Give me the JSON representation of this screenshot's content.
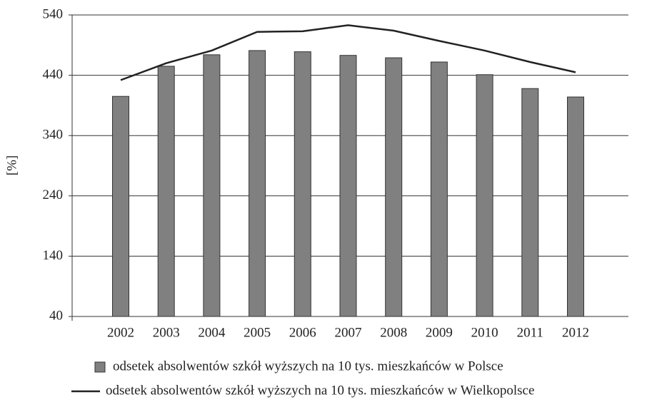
{
  "chart_data": {
    "type": "bar",
    "y_label": "[%]",
    "categories": [
      "2002",
      "2003",
      "2004",
      "2005",
      "2006",
      "2007",
      "2008",
      "2009",
      "2010",
      "2011",
      "2012"
    ],
    "series": [
      {
        "name": "odsetek absolwentów szkół wyższych na 10 tys. mieszkańców w Polsce",
        "type": "bar",
        "color": "#808080",
        "values": [
          405,
          455,
          474,
          481,
          479,
          473,
          469,
          462,
          441,
          418,
          404
        ]
      },
      {
        "name": "odsetek absolwentów szkół wyższych na 10 tys. mieszkańców w Wielkopolsce",
        "type": "line",
        "color": "#222222",
        "values": [
          432,
          460,
          481,
          512,
          513,
          523,
          514,
          497,
          481,
          462,
          445
        ]
      }
    ],
    "ylim": [
      40,
      540
    ],
    "yticks": [
      40,
      140,
      240,
      340,
      440,
      540
    ],
    "grid": true
  }
}
